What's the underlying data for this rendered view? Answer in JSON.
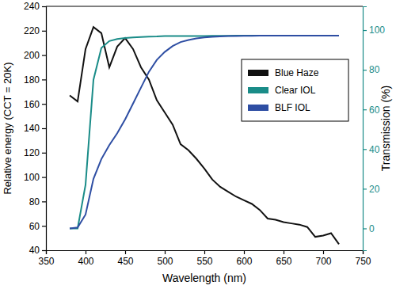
{
  "chart_data": {
    "type": "line",
    "x_label": "Wavelength (nm)",
    "y_label": "Relative energy (CCT = 20K)",
    "y2_label": "Transmission (%)",
    "x": [
      380,
      390,
      400,
      410,
      420,
      430,
      440,
      450,
      460,
      470,
      480,
      490,
      500,
      510,
      520,
      530,
      540,
      550,
      560,
      570,
      580,
      590,
      600,
      610,
      620,
      630,
      640,
      650,
      660,
      670,
      680,
      690,
      700,
      710,
      720
    ],
    "xlim": [
      350,
      750
    ],
    "xticks": [
      350,
      400,
      450,
      500,
      550,
      600,
      650,
      700,
      750
    ],
    "ylim": [
      40,
      240
    ],
    "yticks": [
      40,
      60,
      80,
      100,
      120,
      140,
      160,
      180,
      200,
      220,
      240
    ],
    "y2lim": [
      -11,
      112
    ],
    "y2ticks": [
      0,
      20,
      40,
      60,
      80,
      100
    ],
    "legend": "upper right",
    "series": [
      {
        "name": "Blue Haze",
        "color": "#111111",
        "values": [
          167,
          162,
          205,
          223,
          218,
          190,
          207,
          214,
          205,
          190,
          180,
          163,
          153,
          143,
          127,
          122,
          115,
          107,
          98,
          92,
          88,
          84,
          81,
          78,
          73,
          66,
          65,
          63,
          62,
          61,
          59,
          51,
          52,
          54,
          45
        ]
      },
      {
        "name": "Clear IOL",
        "color": "#1a8c88",
        "axis": "y2",
        "values": [
          0,
          0,
          22,
          75,
          91,
          94.5,
          95.5,
          96,
          96.3,
          96.5,
          96.7,
          96.8,
          97,
          97,
          97,
          97,
          97,
          97,
          97.1,
          97.1,
          97.1,
          97.2,
          97.2,
          97.2,
          97.2,
          97.2,
          97.2,
          97.2,
          97.2,
          97.2,
          97.2,
          97.2,
          97.2,
          97.2,
          97.2
        ]
      },
      {
        "name": "BLF IOL",
        "color": "#2e4ea3",
        "axis": "y2",
        "values": [
          0,
          0.5,
          7,
          25,
          35,
          42,
          48,
          55,
          63,
          71,
          79,
          85,
          89,
          92,
          94,
          95,
          95.8,
          96.3,
          96.6,
          96.8,
          97,
          97,
          97.1,
          97.1,
          97.2,
          97.2,
          97.2,
          97.2,
          97.2,
          97.2,
          97.2,
          97.2,
          97.2,
          97.2,
          97.2
        ]
      }
    ]
  }
}
